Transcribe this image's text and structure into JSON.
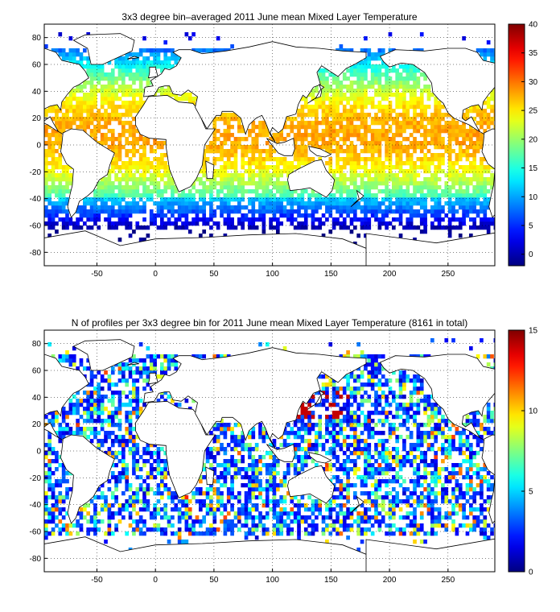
{
  "chart_data": [
    {
      "type": "heatmap",
      "title": "3x3 degree bin–averaged 2011 June mean Mixed Layer Temperature",
      "xlabel": "",
      "ylabel": "",
      "xlim": [
        -95,
        290
      ],
      "ylim": [
        -90,
        90
      ],
      "xticks": [
        -50,
        0,
        50,
        100,
        150,
        200,
        250
      ],
      "yticks": [
        80,
        60,
        40,
        20,
        0,
        -20,
        -40,
        -60,
        -80
      ],
      "colorbar": {
        "min": -2,
        "max": 40,
        "ticks": [
          0,
          5,
          10,
          15,
          20,
          25,
          30,
          35,
          40
        ],
        "colormap": "jet"
      },
      "bin_size_deg": 3,
      "field": "mixed_layer_temperature",
      "grid": "dotted"
    },
    {
      "type": "heatmap",
      "title": "N of profiles per 3x3 degree bin for 2011 June mean Mixed Layer Temperature  (8161 in total)",
      "xlabel": "",
      "ylabel": "",
      "xlim": [
        -95,
        290
      ],
      "ylim": [
        -90,
        90
      ],
      "xticks": [
        -50,
        0,
        50,
        100,
        150,
        200,
        250
      ],
      "yticks": [
        80,
        60,
        40,
        20,
        0,
        -20,
        -40,
        -60,
        -80
      ],
      "colorbar": {
        "min": 0,
        "max": 15,
        "ticks": [
          0,
          5,
          10,
          15
        ],
        "colormap": "jet"
      },
      "bin_size_deg": 3,
      "field": "profile_count",
      "total_profiles": 8161,
      "grid": "dotted"
    }
  ]
}
